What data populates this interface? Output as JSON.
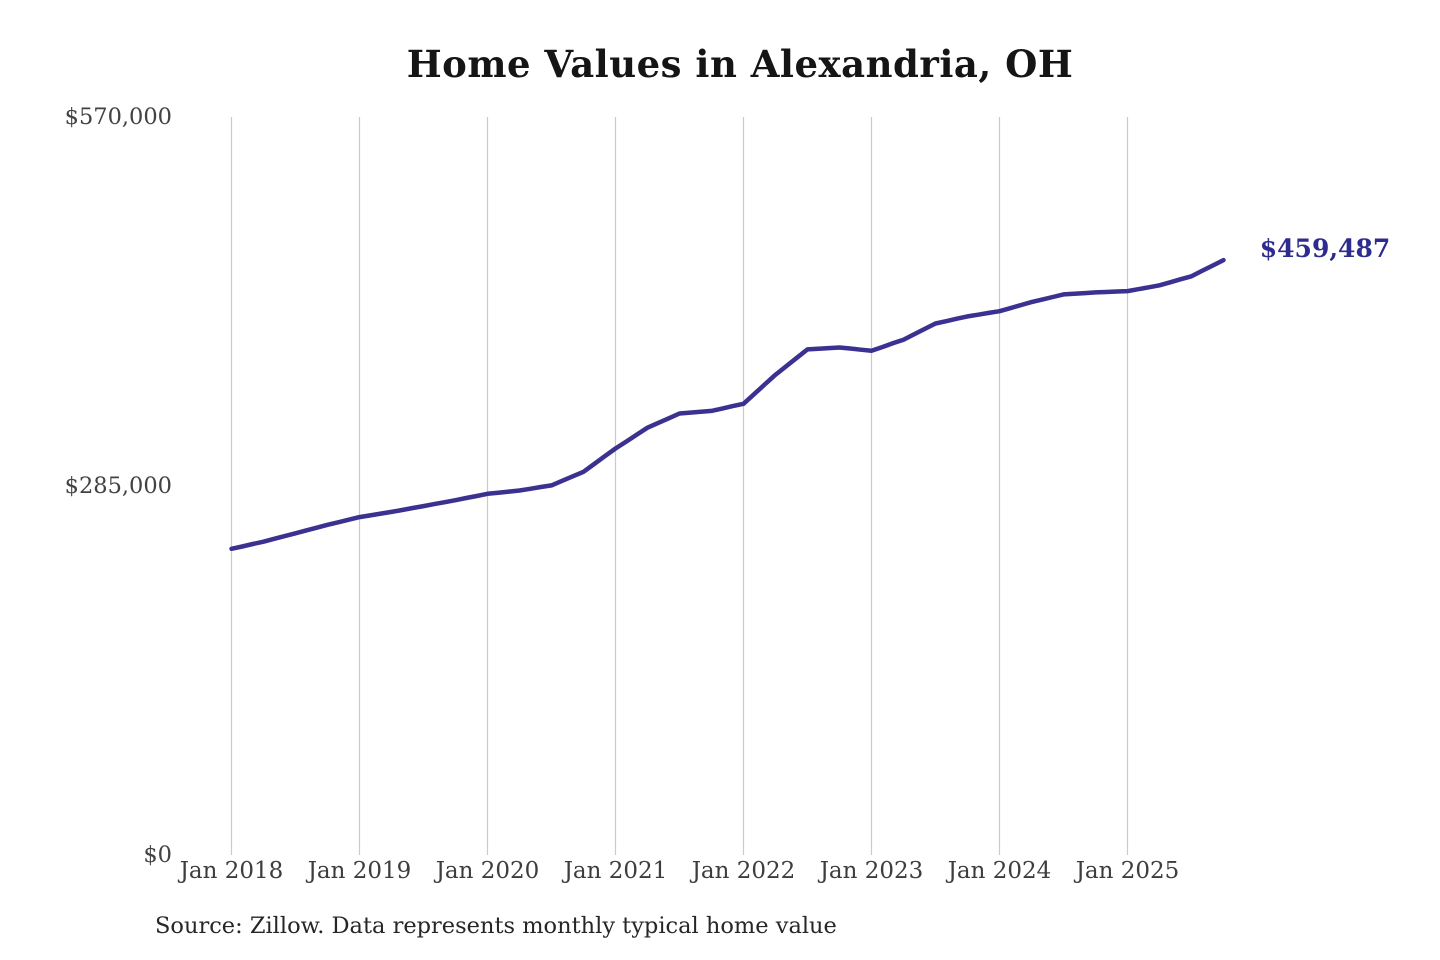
{
  "chart_data": {
    "type": "line",
    "title": "Home Values in Alexandria, OH",
    "source_note": "Source: Zillow. Data represents monthly typical home value",
    "series_name": "Monthly typical home value",
    "end_label": "$459,487",
    "end_value": 459487,
    "x_start": "2018-01",
    "x_end": "2025-10",
    "x_frequency": "monthly",
    "x_tick_labels": [
      "Jan 2018",
      "Jan 2019",
      "Jan 2020",
      "Jan 2021",
      "Jan 2022",
      "Jan 2023",
      "Jan 2024",
      "Jan 2025"
    ],
    "y_tick_labels": [
      "$0",
      "$285,000",
      "$570,000"
    ],
    "y_tick_values": [
      0,
      285000,
      570000
    ],
    "ylim": [
      0,
      570000
    ],
    "grid": "vertical-only",
    "legend": "none",
    "line_color": "#3b3191",
    "end_label_color": "#2d2b8e",
    "gridline_color": "#cbcbcb",
    "values": [
      236500,
      238300,
      240200,
      242000,
      244200,
      246300,
      248500,
      250700,
      252800,
      255000,
      257000,
      259000,
      261000,
      262300,
      263700,
      265000,
      266500,
      268000,
      269500,
      271000,
      272500,
      274000,
      275700,
      277300,
      279000,
      279800,
      280700,
      281500,
      282800,
      284200,
      285500,
      289000,
      292500,
      296000,
      302000,
      308000,
      314000,
      319300,
      324700,
      330000,
      333700,
      337300,
      341000,
      341700,
      342300,
      343000,
      344800,
      346700,
      348500,
      356000,
      363500,
      371000,
      377500,
      384000,
      390500,
      391000,
      391500,
      392000,
      391200,
      390300,
      389500,
      392300,
      395200,
      398000,
      402200,
      406300,
      410500,
      412300,
      414200,
      416000,
      417300,
      418700,
      420000,
      422300,
      424700,
      427000,
      429000,
      431000,
      433000,
      433500,
      434000,
      434500,
      434800,
      435200,
      435500,
      437000,
      438500,
      440000,
      442300,
      444700,
      447000,
      451200,
      455300,
      459487
    ]
  }
}
